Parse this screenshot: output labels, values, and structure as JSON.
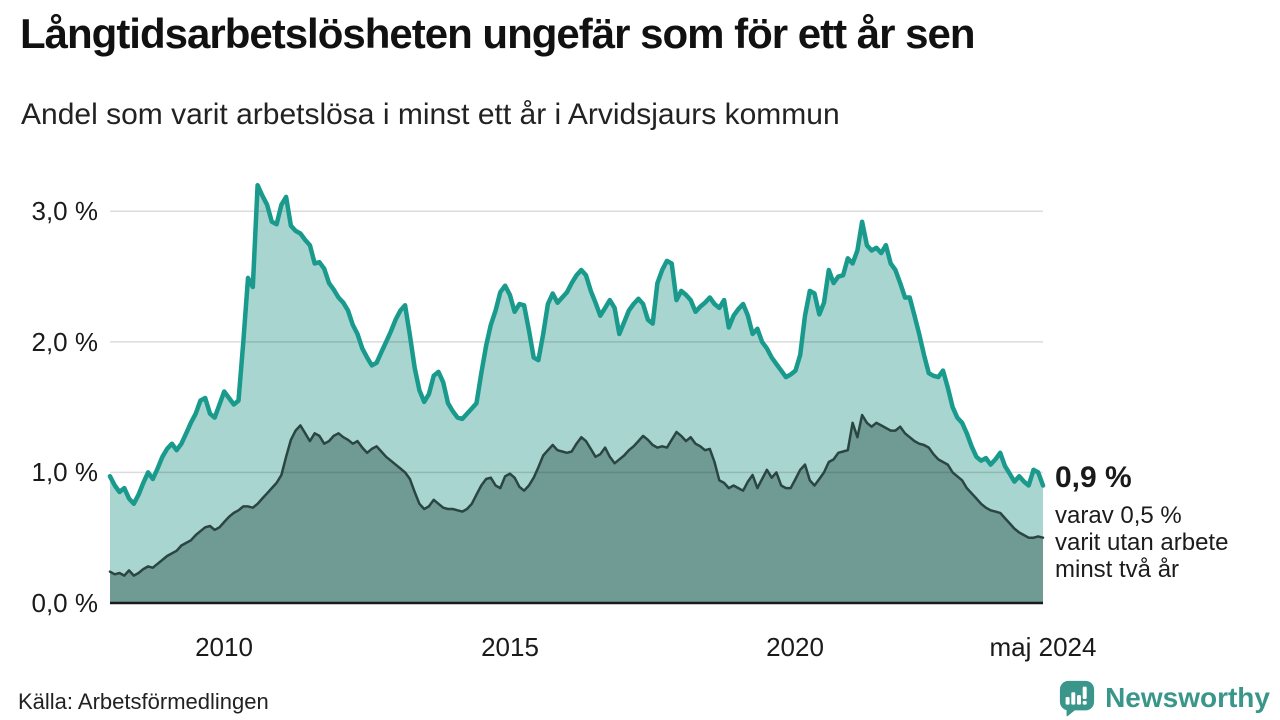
{
  "header": {
    "title": "Långtidsarbetslösheten ungefär som för ett år sen",
    "subtitle": "Andel som varit arbetslösa i minst ett år i Arvidsjaurs kommun"
  },
  "footer": {
    "source": "Källa: Arbetsförmedlingen",
    "brand": "Newsworthy"
  },
  "colors": {
    "series1_line": "#199a8c",
    "series1_fill": "#a8d5cf",
    "series2_line": "#2b4642",
    "series2_fill": "#6f9b94",
    "gridline": "rgba(40,40,40,0.16)",
    "baseline": "#1a1a1a",
    "brand_teal": "#3a968a",
    "text": "#1a1a1a"
  },
  "chart_data": {
    "type": "area",
    "title": "Långtidsarbetslösheten ungefär som för ett år sen",
    "subtitle": "Andel som varit arbetslösa i minst ett år i Arvidsjaurs kommun",
    "unit": "%",
    "frequency": "monthly",
    "x_start": "2008-01",
    "x_end": "2024-05",
    "ylim": [
      0,
      3.4
    ],
    "grid": "horizontal",
    "legend_position": "none",
    "y_ticks": [
      {
        "value": 3,
        "label": "3,0 %"
      },
      {
        "value": 2,
        "label": "2,0 %"
      },
      {
        "value": 1,
        "label": "1,0 %"
      },
      {
        "value": 0,
        "label": "0,0 %"
      }
    ],
    "x_ticks": [
      {
        "month_index": 24,
        "label": "2010"
      },
      {
        "month_index": 84,
        "label": "2015"
      },
      {
        "month_index": 144,
        "label": "2020"
      },
      {
        "month_index": 196,
        "label": "maj 2024"
      }
    ],
    "annotation": {
      "headline": "0,9 %",
      "lines": [
        "varav 0,5 %",
        "varit utan arbete",
        "minst två år"
      ]
    },
    "series": [
      {
        "name": "Andel som varit arbetslösa i minst ett år",
        "last_value_label": "0,9 %",
        "values": [
          0.97,
          0.9,
          0.85,
          0.88,
          0.8,
          0.76,
          0.83,
          0.92,
          1.0,
          0.95,
          1.03,
          1.12,
          1.18,
          1.22,
          1.17,
          1.22,
          1.3,
          1.38,
          1.45,
          1.55,
          1.57,
          1.45,
          1.42,
          1.52,
          1.62,
          1.57,
          1.52,
          1.55,
          2.0,
          2.49,
          2.42,
          3.2,
          3.12,
          3.05,
          2.92,
          2.9,
          3.05,
          3.11,
          2.89,
          2.85,
          2.83,
          2.78,
          2.74,
          2.6,
          2.61,
          2.56,
          2.45,
          2.4,
          2.34,
          2.3,
          2.24,
          2.13,
          2.06,
          1.95,
          1.88,
          1.82,
          1.84,
          1.92,
          2.0,
          2.08,
          2.17,
          2.24,
          2.28,
          2.05,
          1.8,
          1.63,
          1.54,
          1.6,
          1.74,
          1.77,
          1.69,
          1.53,
          1.47,
          1.42,
          1.41,
          1.45,
          1.49,
          1.53,
          1.76,
          1.97,
          2.13,
          2.24,
          2.38,
          2.43,
          2.36,
          2.23,
          2.29,
          2.28,
          2.09,
          1.88,
          1.86,
          2.06,
          2.29,
          2.37,
          2.3,
          2.34,
          2.38,
          2.45,
          2.51,
          2.55,
          2.51,
          2.39,
          2.3,
          2.2,
          2.26,
          2.32,
          2.26,
          2.06,
          2.15,
          2.24,
          2.29,
          2.33,
          2.29,
          2.17,
          2.14,
          2.45,
          2.55,
          2.62,
          2.6,
          2.32,
          2.39,
          2.36,
          2.32,
          2.23,
          2.27,
          2.3,
          2.34,
          2.29,
          2.26,
          2.32,
          2.11,
          2.2,
          2.25,
          2.29,
          2.2,
          2.06,
          2.1,
          2.0,
          1.95,
          1.88,
          1.83,
          1.78,
          1.73,
          1.75,
          1.78,
          1.9,
          2.2,
          2.39,
          2.37,
          2.21,
          2.3,
          2.55,
          2.45,
          2.5,
          2.51,
          2.64,
          2.6,
          2.7,
          2.92,
          2.74,
          2.7,
          2.72,
          2.68,
          2.74,
          2.6,
          2.55,
          2.45,
          2.34,
          2.34,
          2.2,
          2.06,
          1.9,
          1.76,
          1.74,
          1.73,
          1.78,
          1.65,
          1.5,
          1.42,
          1.38,
          1.3,
          1.2,
          1.12,
          1.09,
          1.11,
          1.06,
          1.1,
          1.15,
          1.05,
          0.99,
          0.93,
          0.97,
          0.93,
          0.9,
          1.02,
          1.0,
          0.9
        ]
      },
      {
        "name": "Andel som varit utan arbete minst två år",
        "last_value_label": "0,5 %",
        "values": [
          0.24,
          0.22,
          0.23,
          0.21,
          0.25,
          0.21,
          0.23,
          0.26,
          0.28,
          0.27,
          0.3,
          0.33,
          0.36,
          0.38,
          0.4,
          0.44,
          0.46,
          0.48,
          0.52,
          0.55,
          0.58,
          0.59,
          0.56,
          0.58,
          0.62,
          0.66,
          0.69,
          0.71,
          0.74,
          0.74,
          0.73,
          0.76,
          0.8,
          0.84,
          0.88,
          0.92,
          0.98,
          1.12,
          1.25,
          1.32,
          1.36,
          1.3,
          1.24,
          1.3,
          1.28,
          1.22,
          1.24,
          1.28,
          1.3,
          1.27,
          1.25,
          1.22,
          1.24,
          1.19,
          1.15,
          1.18,
          1.2,
          1.16,
          1.12,
          1.09,
          1.06,
          1.03,
          1.0,
          0.95,
          0.85,
          0.76,
          0.72,
          0.74,
          0.79,
          0.76,
          0.73,
          0.72,
          0.72,
          0.71,
          0.7,
          0.72,
          0.76,
          0.83,
          0.9,
          0.95,
          0.96,
          0.9,
          0.88,
          0.97,
          0.99,
          0.96,
          0.89,
          0.86,
          0.9,
          0.96,
          1.04,
          1.13,
          1.17,
          1.21,
          1.17,
          1.16,
          1.15,
          1.16,
          1.22,
          1.27,
          1.24,
          1.18,
          1.12,
          1.14,
          1.19,
          1.12,
          1.07,
          1.1,
          1.13,
          1.17,
          1.2,
          1.24,
          1.28,
          1.25,
          1.21,
          1.19,
          1.2,
          1.19,
          1.25,
          1.31,
          1.28,
          1.24,
          1.27,
          1.22,
          1.2,
          1.17,
          1.18,
          1.08,
          0.94,
          0.92,
          0.88,
          0.9,
          0.88,
          0.86,
          0.93,
          0.98,
          0.88,
          0.95,
          1.02,
          0.96,
          1.0,
          0.9,
          0.88,
          0.88,
          0.95,
          1.02,
          1.06,
          0.94,
          0.9,
          0.95,
          1.0,
          1.08,
          1.1,
          1.15,
          1.16,
          1.17,
          1.38,
          1.27,
          1.44,
          1.38,
          1.35,
          1.38,
          1.36,
          1.34,
          1.32,
          1.32,
          1.35,
          1.3,
          1.27,
          1.24,
          1.22,
          1.21,
          1.19,
          1.14,
          1.1,
          1.08,
          1.06,
          1.0,
          0.97,
          0.94,
          0.88,
          0.84,
          0.8,
          0.76,
          0.73,
          0.71,
          0.7,
          0.69,
          0.65,
          0.61,
          0.57,
          0.54,
          0.52,
          0.5,
          0.5,
          0.51,
          0.5
        ]
      }
    ]
  }
}
